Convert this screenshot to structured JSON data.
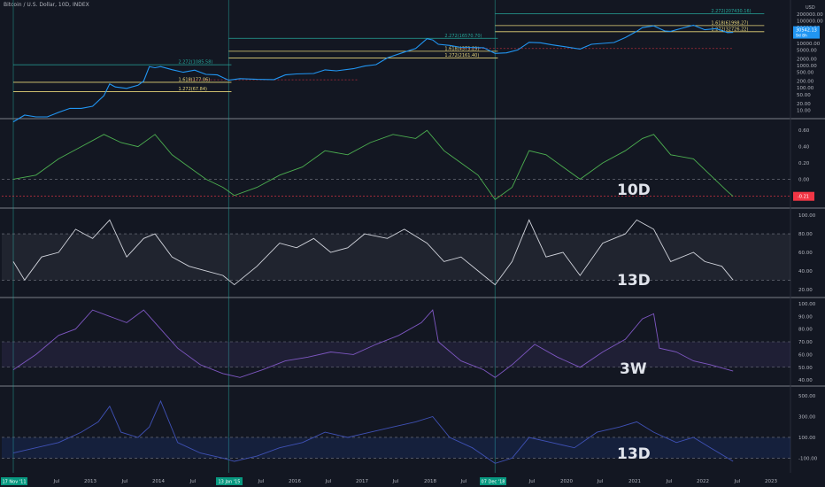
{
  "header": {
    "title": "Bitcoin / U.S. Dollar, 10D, INDEX",
    "currency": "USD"
  },
  "colors": {
    "background": "#131722",
    "price_line": "#2196f3",
    "panel2_line": "#4caf50",
    "panel3_line": "#d1d4dc",
    "panel4_line": "#7e57c2",
    "panel5_line": "#3f51b5",
    "fib_green": "#26a69a",
    "fib_yellow": "#e6d57a",
    "cross_vline": "#26a69a",
    "panel_separator": "#d1d4dc",
    "badge_green": "#089981",
    "badge_red": "#f23645"
  },
  "x_axis": {
    "ticks": [
      "Jul",
      "2013",
      "Jul",
      "2014",
      "Jul",
      "2015",
      "Jul",
      "2016",
      "Jul",
      "2017",
      "Jul",
      "2018",
      "Jul",
      "2019",
      "Jul",
      "2020",
      "Jul",
      "2021",
      "Jul",
      "2022",
      "Jul",
      "2023"
    ],
    "date_badges": [
      "17 Nov '11",
      "13 Jan '15",
      "07 Dec '18"
    ]
  },
  "chart_data": [
    {
      "type": "line",
      "panel": "price",
      "title": "Bitcoin / U.S. Dollar, 10D, INDEX",
      "log_scale": true,
      "y_ticks": [
        "10.00",
        "20.00",
        "50.00",
        "100.00",
        "200.00",
        "500.00",
        "1000.00",
        "2000.00",
        "5000.00",
        "10000.00",
        "20000.00",
        "50000.00",
        "100000.00",
        "200000.00"
      ],
      "last_value": "30542.13",
      "last_sub": "9d 8h",
      "fib_levels": [
        {
          "label": "2.272(1085.58)",
          "value": 1085.58,
          "color": "green",
          "x_start": "2011-11",
          "x_end": "2014-01"
        },
        {
          "label": "1.618(177.06)",
          "value": 177.06,
          "color": "yellow",
          "x_start": "2011-11",
          "x_end": "2014-01"
        },
        {
          "label": "1.272(67.84)",
          "value": 67.84,
          "color": "yellow",
          "x_start": "2011-11",
          "x_end": "2014-01"
        },
        {
          "label": "2.272(16570.70)",
          "value": 16570.7,
          "color": "green",
          "x_start": "2015-01",
          "x_end": "2017-12"
        },
        {
          "label": "1.618(4373.29)",
          "value": 4373.29,
          "color": "yellow",
          "x_start": "2015-01",
          "x_end": "2017-12"
        },
        {
          "label": "1.272(2161.40)",
          "value": 2161.4,
          "color": "yellow",
          "x_start": "2015-01",
          "x_end": "2017-12"
        },
        {
          "label": "2.272(207430.16)",
          "value": 207430.16,
          "color": "green",
          "x_start": "2018-12",
          "x_end": "2021-11"
        },
        {
          "label": "1.618(61998.27)",
          "value": 61998.27,
          "color": "yellow",
          "x_start": "2018-12",
          "x_end": "2021-11"
        },
        {
          "label": "1.272(32726.22)",
          "value": 32726.22,
          "color": "yellow",
          "x_start": "2018-12",
          "x_end": "2021-11"
        }
      ],
      "series": [
        {
          "x": [
            "2011-11",
            "2012-01",
            "2012-03",
            "2012-05",
            "2012-07",
            "2012-09",
            "2012-11",
            "2013-01",
            "2013-03",
            "2013-04",
            "2013-05",
            "2013-07",
            "2013-09",
            "2013-10",
            "2013-11",
            "2013-12",
            "2014-01",
            "2014-03",
            "2014-05",
            "2014-07",
            "2014-09",
            "2014-11",
            "2015-01",
            "2015-03",
            "2015-06",
            "2015-09",
            "2015-11",
            "2016-01",
            "2016-04",
            "2016-06",
            "2016-08",
            "2016-11",
            "2017-01",
            "2017-03",
            "2017-05",
            "2017-06",
            "2017-08",
            "2017-10",
            "2017-12",
            "2018-01",
            "2018-02",
            "2018-04",
            "2018-06",
            "2018-08",
            "2018-10",
            "2018-12",
            "2019-02",
            "2019-04",
            "2019-06",
            "2019-08",
            "2019-10",
            "2019-12",
            "2020-03",
            "2020-05",
            "2020-07",
            "2020-09",
            "2020-11",
            "2021-01",
            "2021-02",
            "2021-04",
            "2021-06",
            "2021-07",
            "2021-09",
            "2021-11",
            "2022-01",
            "2022-03",
            "2022-05",
            "2022-06"
          ],
          "values": [
            3,
            6,
            5,
            5,
            8,
            12,
            12,
            15,
            45,
            150,
            110,
            95,
            130,
            200,
            900,
            800,
            900,
            650,
            500,
            620,
            400,
            380,
            220,
            260,
            240,
            235,
            380,
            420,
            440,
            640,
            580,
            720,
            950,
            1100,
            2200,
            2700,
            4000,
            5800,
            16000,
            14000,
            9000,
            8000,
            6500,
            6400,
            6300,
            3500,
            3700,
            5000,
            11000,
            10500,
            8500,
            7200,
            5500,
            9000,
            9800,
            10800,
            18000,
            34000,
            50000,
            60000,
            35000,
            34000,
            47000,
            64000,
            40000,
            45000,
            30000,
            30542.13
          ]
        }
      ]
    },
    {
      "type": "line",
      "panel": "oscillator",
      "label": "10D",
      "y_ticks": [
        "0.60",
        "0.40",
        "0.20",
        "0.00",
        "-0.20"
      ],
      "last_value": "-0.21",
      "series": [
        {
          "x": [
            "2011-11",
            "2012-03",
            "2012-07",
            "2012-11",
            "2013-03",
            "2013-06",
            "2013-09",
            "2013-12",
            "2014-03",
            "2014-06",
            "2014-09",
            "2014-12",
            "2015-02",
            "2015-06",
            "2015-10",
            "2016-02",
            "2016-06",
            "2016-10",
            "2017-02",
            "2017-06",
            "2017-10",
            "2017-12",
            "2018-03",
            "2018-06",
            "2018-09",
            "2018-12",
            "2019-03",
            "2019-06",
            "2019-09",
            "2019-12",
            "2020-03",
            "2020-07",
            "2020-11",
            "2021-02",
            "2021-04",
            "2021-07",
            "2021-11",
            "2022-02",
            "2022-05",
            "2022-06"
          ],
          "values": [
            0.0,
            0.05,
            0.25,
            0.4,
            0.55,
            0.45,
            0.4,
            0.55,
            0.3,
            0.15,
            0.0,
            -0.1,
            -0.2,
            -0.1,
            0.05,
            0.15,
            0.35,
            0.3,
            0.45,
            0.55,
            0.5,
            0.6,
            0.35,
            0.2,
            0.05,
            -0.25,
            -0.1,
            0.35,
            0.3,
            0.15,
            0.0,
            0.2,
            0.35,
            0.5,
            0.55,
            0.3,
            0.25,
            0.05,
            -0.15,
            -0.21
          ]
        }
      ]
    },
    {
      "type": "line",
      "panel": "oscillator",
      "label": "13D",
      "y_ticks": [
        "100.00",
        "80.00",
        "60.00",
        "40.00",
        "20.00"
      ],
      "band": [
        30,
        80
      ],
      "series": [
        {
          "x": [
            "2011-11",
            "2012-01",
            "2012-04",
            "2012-07",
            "2012-10",
            "2013-01",
            "2013-04",
            "2013-07",
            "2013-10",
            "2013-12",
            "2014-03",
            "2014-06",
            "2014-09",
            "2014-12",
            "2015-02",
            "2015-06",
            "2015-10",
            "2016-01",
            "2016-04",
            "2016-07",
            "2016-10",
            "2017-01",
            "2017-05",
            "2017-08",
            "2017-12",
            "2018-03",
            "2018-06",
            "2018-09",
            "2018-12",
            "2019-03",
            "2019-06",
            "2019-09",
            "2019-12",
            "2020-03",
            "2020-07",
            "2020-11",
            "2021-01",
            "2021-04",
            "2021-07",
            "2021-11",
            "2022-01",
            "2022-04",
            "2022-06"
          ],
          "values": [
            50,
            30,
            55,
            60,
            85,
            75,
            95,
            55,
            75,
            80,
            55,
            45,
            40,
            35,
            25,
            45,
            70,
            65,
            75,
            60,
            65,
            80,
            75,
            85,
            70,
            50,
            55,
            40,
            25,
            50,
            95,
            55,
            60,
            35,
            70,
            80,
            95,
            85,
            50,
            60,
            50,
            45,
            30
          ]
        }
      ]
    },
    {
      "type": "line",
      "panel": "oscillator",
      "label": "3W",
      "y_ticks": [
        "100.00",
        "90.00",
        "80.00",
        "70.00",
        "60.00",
        "50.00",
        "40.00"
      ],
      "band": [
        50,
        70
      ],
      "series": [
        {
          "x": [
            "2011-11",
            "2012-03",
            "2012-07",
            "2012-10",
            "2013-01",
            "2013-04",
            "2013-07",
            "2013-10",
            "2013-12",
            "2014-04",
            "2014-08",
            "2014-12",
            "2015-03",
            "2015-07",
            "2015-11",
            "2016-03",
            "2016-07",
            "2016-11",
            "2017-03",
            "2017-07",
            "2017-11",
            "2018-01",
            "2018-02",
            "2018-06",
            "2018-10",
            "2018-12",
            "2019-03",
            "2019-07",
            "2019-11",
            "2020-03",
            "2020-07",
            "2020-11",
            "2021-02",
            "2021-04",
            "2021-05",
            "2021-08",
            "2021-11",
            "2022-02",
            "2022-06"
          ],
          "values": [
            48,
            60,
            75,
            80,
            95,
            90,
            85,
            95,
            85,
            65,
            52,
            45,
            42,
            48,
            55,
            58,
            62,
            60,
            68,
            75,
            85,
            95,
            70,
            55,
            48,
            42,
            52,
            68,
            58,
            50,
            62,
            72,
            88,
            92,
            65,
            62,
            55,
            52,
            47
          ]
        }
      ]
    },
    {
      "type": "line",
      "panel": "oscillator",
      "label": "13D",
      "y_ticks": [
        "500.00",
        "300.00",
        "100.00",
        "-100.00"
      ],
      "band": [
        -100,
        100
      ],
      "series": [
        {
          "x": [
            "2011-11",
            "2012-03",
            "2012-07",
            "2012-11",
            "2013-02",
            "2013-04",
            "2013-06",
            "2013-09",
            "2013-11",
            "2014-01",
            "2014-04",
            "2014-08",
            "2014-12",
            "2015-02",
            "2015-06",
            "2015-10",
            "2016-02",
            "2016-06",
            "2016-10",
            "2017-02",
            "2017-06",
            "2017-10",
            "2018-01",
            "2018-04",
            "2018-08",
            "2018-12",
            "2019-03",
            "2019-06",
            "2019-10",
            "2020-02",
            "2020-06",
            "2020-10",
            "2021-01",
            "2021-04",
            "2021-08",
            "2021-11",
            "2022-02",
            "2022-06"
          ],
          "values": [
            -50,
            0,
            50,
            150,
            250,
            400,
            150,
            100,
            200,
            450,
            50,
            -50,
            -100,
            -130,
            -80,
            0,
            50,
            150,
            100,
            150,
            200,
            250,
            300,
            100,
            0,
            -150,
            -100,
            100,
            50,
            0,
            150,
            200,
            250,
            150,
            50,
            100,
            0,
            -130
          ]
        }
      ]
    }
  ]
}
